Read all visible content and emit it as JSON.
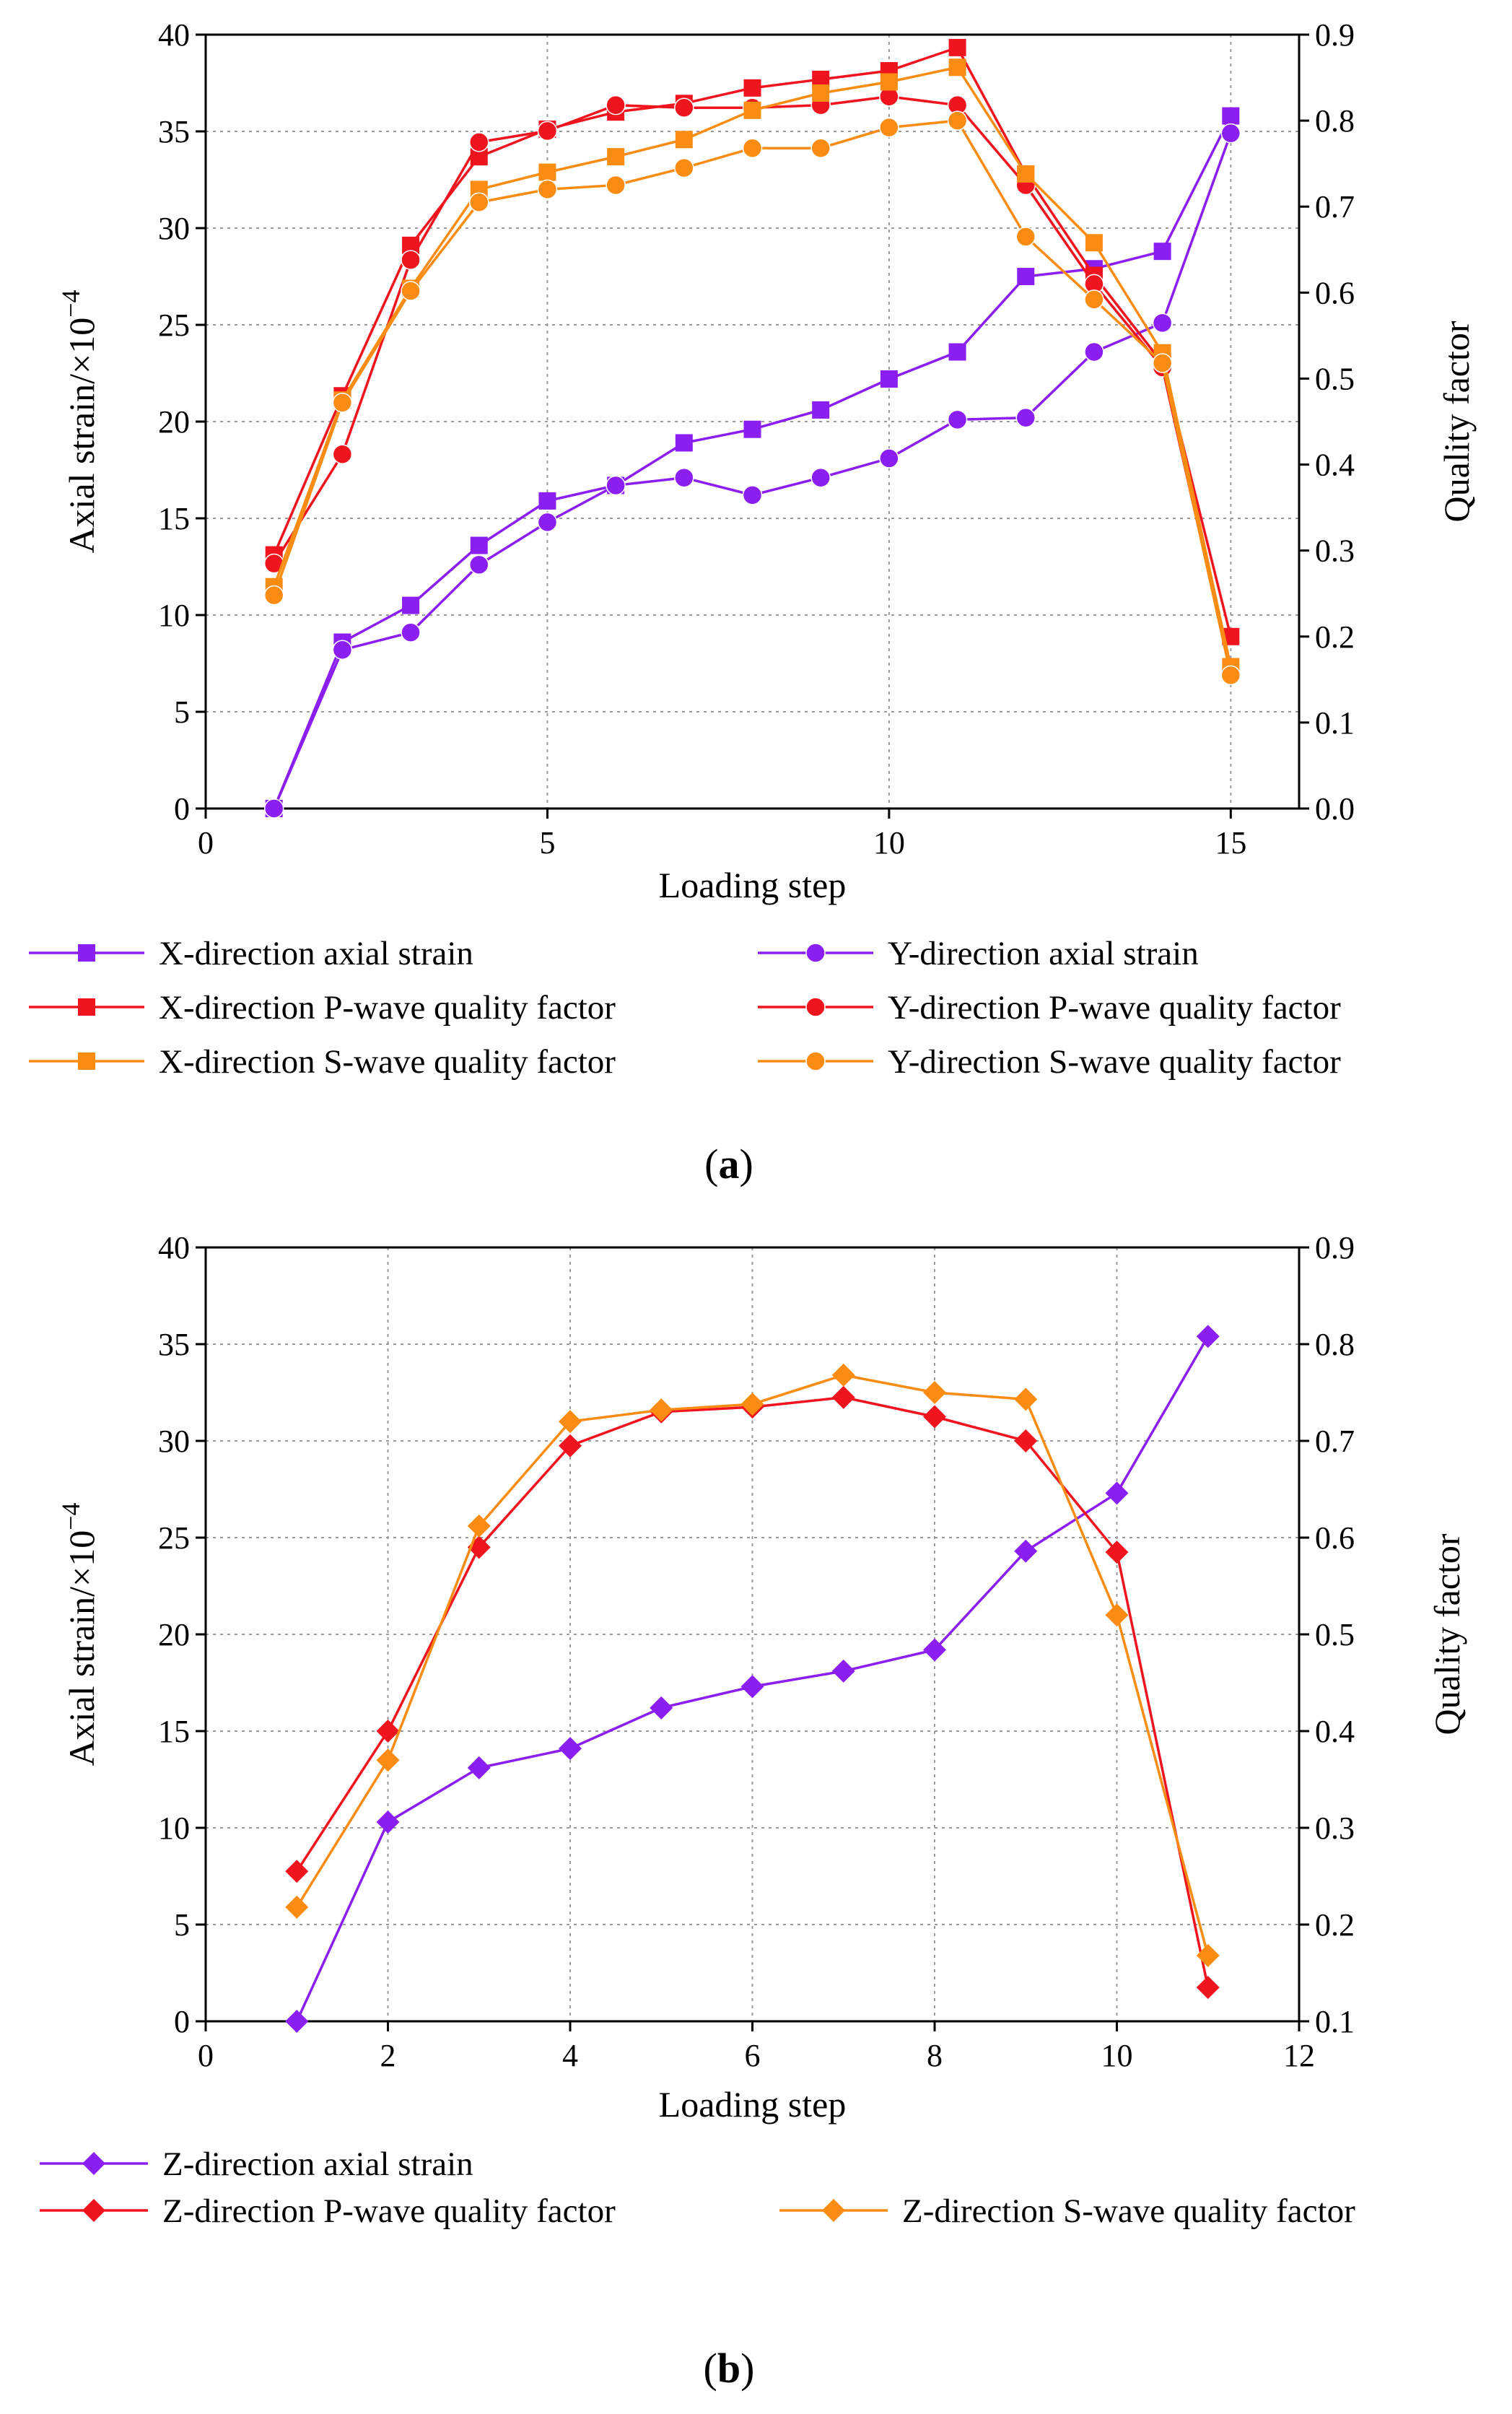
{
  "chart_data": [
    {
      "type": "line",
      "panel_label": "(a)",
      "panel_letter": "a",
      "xlabel": "Loading step",
      "ylabel_left": "Axial strain/×10",
      "ylabel_left_exp": "−4",
      "ylabel_right": "Quality factor",
      "xlim": [
        0,
        16
      ],
      "xticks": [
        0,
        5,
        10,
        15
      ],
      "ylim_left": [
        0,
        40
      ],
      "yticks_left": [
        0,
        5,
        10,
        15,
        20,
        25,
        30,
        35,
        40
      ],
      "ylim_right": [
        0,
        0.9
      ],
      "yticks_right": [
        "0.0",
        "0.1",
        "0.2",
        "0.3",
        "0.4",
        "0.5",
        "0.6",
        "0.7",
        "0.8",
        "0.9"
      ],
      "grid": true,
      "legend_position": "bottom",
      "series": [
        {
          "name": "X-direction axial strain",
          "axis": "left",
          "marker": "square",
          "color": "#8B1EF0",
          "x": [
            1,
            2,
            3,
            4,
            5,
            6,
            7,
            8,
            9,
            10,
            11,
            12,
            13,
            14,
            15
          ],
          "values": [
            0,
            8.6,
            10.5,
            13.6,
            15.9,
            16.7,
            18.9,
            19.6,
            20.6,
            22.2,
            23.6,
            27.5,
            27.9,
            28.8,
            35.8
          ]
        },
        {
          "name": "Y-direction axial strain",
          "axis": "left",
          "marker": "circle",
          "color": "#8B1EF0",
          "x": [
            1,
            2,
            3,
            4,
            5,
            6,
            7,
            8,
            9,
            10,
            11,
            12,
            13,
            14,
            15
          ],
          "values": [
            0,
            8.2,
            9.1,
            12.6,
            14.8,
            16.7,
            17.1,
            16.2,
            17.1,
            18.1,
            20.1,
            20.2,
            23.6,
            25.1,
            34.9
          ]
        },
        {
          "name": "X-direction P-wave quality factor",
          "axis": "right",
          "marker": "square",
          "color": "#F0141E",
          "x": [
            1,
            2,
            3,
            4,
            5,
            6,
            7,
            8,
            9,
            10,
            11,
            12,
            13,
            14,
            15
          ],
          "values": [
            0.295,
            0.48,
            0.655,
            0.758,
            0.79,
            0.81,
            0.82,
            0.838,
            0.848,
            0.858,
            0.885,
            0.738,
            0.62,
            0.518,
            0.2
          ]
        },
        {
          "name": "Y-direction P-wave quality factor",
          "axis": "right",
          "marker": "circle",
          "color": "#F0141E",
          "x": [
            1,
            2,
            3,
            4,
            5,
            6,
            7,
            8,
            9,
            10,
            11,
            12,
            13,
            14,
            15
          ],
          "values": [
            0.285,
            0.412,
            0.638,
            0.775,
            0.788,
            0.818,
            0.815,
            0.815,
            0.818,
            0.828,
            0.818,
            0.725,
            0.61,
            0.513,
            0.16
          ]
        },
        {
          "name": "X-direction S-wave quality factor",
          "axis": "right",
          "marker": "square",
          "color": "#FA8C14",
          "x": [
            1,
            2,
            3,
            4,
            5,
            6,
            7,
            8,
            9,
            10,
            11,
            12,
            13,
            14,
            15
          ],
          "values": [
            0.258,
            0.475,
            0.605,
            0.72,
            0.74,
            0.758,
            0.778,
            0.812,
            0.832,
            0.845,
            0.862,
            0.738,
            0.658,
            0.53,
            0.165
          ]
        },
        {
          "name": "Y-direction S-wave quality factor",
          "axis": "right",
          "marker": "circle",
          "color": "#FA8C14",
          "x": [
            1,
            2,
            3,
            4,
            5,
            6,
            7,
            8,
            9,
            10,
            11,
            12,
            13,
            14,
            15
          ],
          "values": [
            0.248,
            0.472,
            0.602,
            0.705,
            0.72,
            0.725,
            0.745,
            0.768,
            0.768,
            0.792,
            0.8,
            0.665,
            0.592,
            0.518,
            0.155
          ]
        }
      ]
    },
    {
      "type": "line",
      "panel_label": "(b)",
      "panel_letter": "b",
      "xlabel": "Loading step",
      "ylabel_left": "Axial strain/×10",
      "ylabel_left_exp": "−4",
      "ylabel_right": "Quality factor",
      "xlim": [
        0,
        12
      ],
      "xticks": [
        0,
        2,
        4,
        6,
        8,
        10,
        12
      ],
      "ylim_left": [
        0,
        40
      ],
      "yticks_left": [
        0,
        5,
        10,
        15,
        20,
        25,
        30,
        35,
        40
      ],
      "ylim_right": [
        0.1,
        0.9
      ],
      "yticks_right": [
        "0.1",
        "0.2",
        "0.3",
        "0.4",
        "0.5",
        "0.6",
        "0.7",
        "0.8",
        "0.9"
      ],
      "grid": true,
      "legend_position": "bottom",
      "series": [
        {
          "name": "Z-direction axial strain",
          "axis": "left",
          "marker": "diamond",
          "color": "#8B1EF0",
          "x": [
            1,
            2,
            3,
            4,
            5,
            6,
            7,
            8,
            9,
            10,
            11
          ],
          "values": [
            0,
            10.3,
            13.1,
            14.1,
            16.2,
            17.3,
            18.1,
            19.2,
            24.3,
            27.3,
            35.4
          ]
        },
        {
          "name": "Z-direction P-wave quality factor",
          "axis": "right",
          "marker": "diamond",
          "color": "#F0141E",
          "x": [
            1,
            2,
            3,
            4,
            5,
            6,
            7,
            8,
            9,
            10,
            11
          ],
          "values": [
            0.255,
            0.4,
            0.59,
            0.695,
            0.73,
            0.735,
            0.745,
            0.725,
            0.7,
            0.585,
            0.135
          ]
        },
        {
          "name": "Z-direction S-wave quality factor",
          "axis": "right",
          "marker": "diamond",
          "color": "#FA8C14",
          "x": [
            1,
            2,
            3,
            4,
            5,
            6,
            7,
            8,
            9,
            10,
            11
          ],
          "values": [
            0.218,
            0.37,
            0.612,
            0.72,
            0.732,
            0.738,
            0.768,
            0.75,
            0.743,
            0.52,
            0.168
          ]
        }
      ]
    }
  ]
}
